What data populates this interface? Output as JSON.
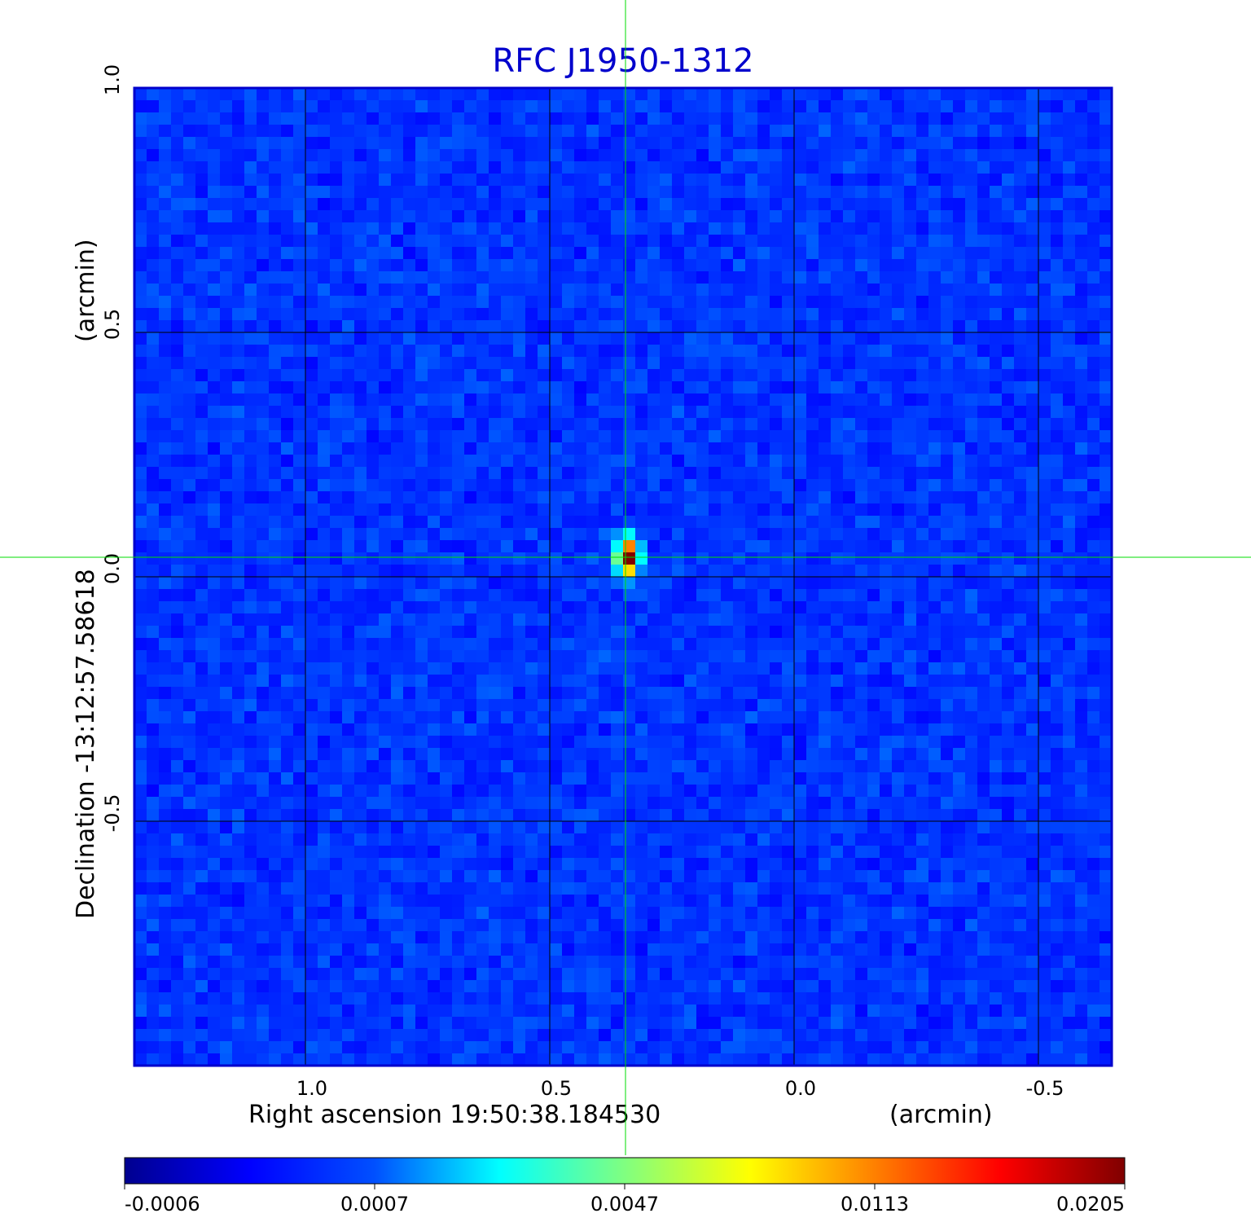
{
  "chart_data": {
    "type": "heatmap",
    "title": "RFC J1950-1312",
    "xlabel": "Right ascension  19:50:38.184530",
    "xunit": "(arcmin)",
    "ylabel": "Declination  -13:12:57.58618",
    "yunit": "(arcmin)",
    "xlim": [
      1.35,
      -0.65
    ],
    "ylim": [
      -1.0,
      1.0
    ],
    "x_ticks": [
      {
        "value": 1.0,
        "label": "1.0"
      },
      {
        "value": 0.5,
        "label": "0.5"
      },
      {
        "value": 0.0,
        "label": "0.0"
      },
      {
        "value": -0.5,
        "label": "-0.5"
      }
    ],
    "y_ticks": [
      {
        "value": 1.0,
        "label": "1.0"
      },
      {
        "value": 0.5,
        "label": "0.5"
      },
      {
        "value": 0.0,
        "label": "0.0"
      },
      {
        "value": -0.5,
        "label": "-0.5"
      }
    ],
    "grid": true,
    "colormap": "jet",
    "colorbar": {
      "range": [
        -0.0006,
        0.0205
      ],
      "ticks": [
        {
          "value": -0.0006,
          "label": "-0.0006"
        },
        {
          "value": 0.0007,
          "label": "0.0007"
        },
        {
          "value": 0.0047,
          "label": "0.0047"
        },
        {
          "value": 0.0113,
          "label": "0.0113"
        },
        {
          "value": 0.0205,
          "label": "0.0205"
        }
      ]
    },
    "source": {
      "x": 0.34,
      "y": 0.04,
      "peak": 0.0205
    },
    "crosshair": {
      "x": 0.345,
      "y": 0.04,
      "color": "#00dd00"
    },
    "colors": {
      "title": "#0000cc",
      "grid": "#000000",
      "frame": "#0000cc"
    }
  }
}
